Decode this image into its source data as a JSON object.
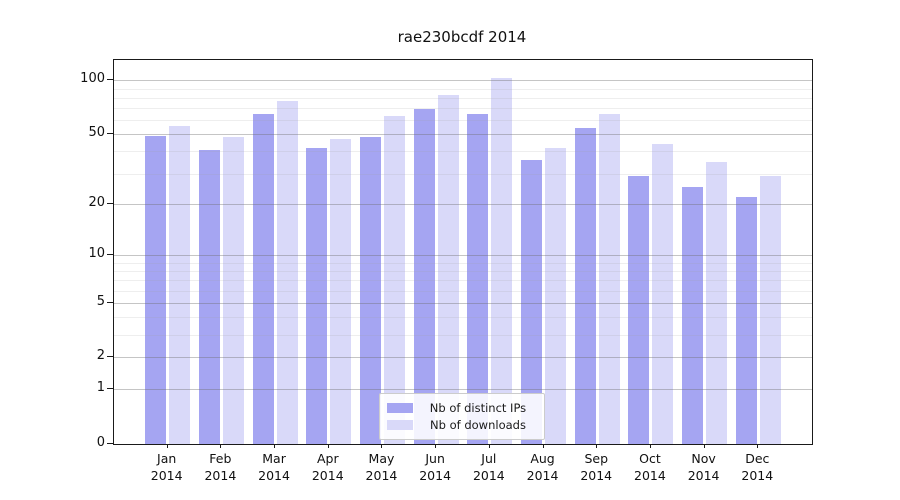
{
  "chart_data": {
    "type": "bar",
    "title": "rae230bcdf 2014",
    "categories": [
      "Jan",
      "Feb",
      "Mar",
      "Apr",
      "May",
      "Jun",
      "Jul",
      "Aug",
      "Sep",
      "Oct",
      "Nov",
      "Dec"
    ],
    "category_year": "2014",
    "series": [
      {
        "name": "Nb of distinct IPs",
        "color": "#a5a5f2",
        "values": [
          49,
          41,
          65,
          42,
          48,
          69,
          65,
          36,
          54,
          29,
          25,
          22
        ]
      },
      {
        "name": "Nb of downloads",
        "color": "#d9d9f9",
        "values": [
          56,
          48,
          77,
          47,
          63,
          83,
          103,
          42,
          65,
          44,
          35,
          29
        ]
      }
    ],
    "xlabel": "",
    "ylabel": "",
    "yscale": "log1p",
    "ylim": [
      0,
      130
    ],
    "yticks": [
      0,
      1,
      2,
      5,
      10,
      20,
      50,
      100
    ],
    "yticks_minor": [
      3,
      4,
      6,
      7,
      8,
      9,
      30,
      40,
      60,
      70,
      80,
      90
    ],
    "grid": true,
    "legend_position": "bottom-center"
  }
}
